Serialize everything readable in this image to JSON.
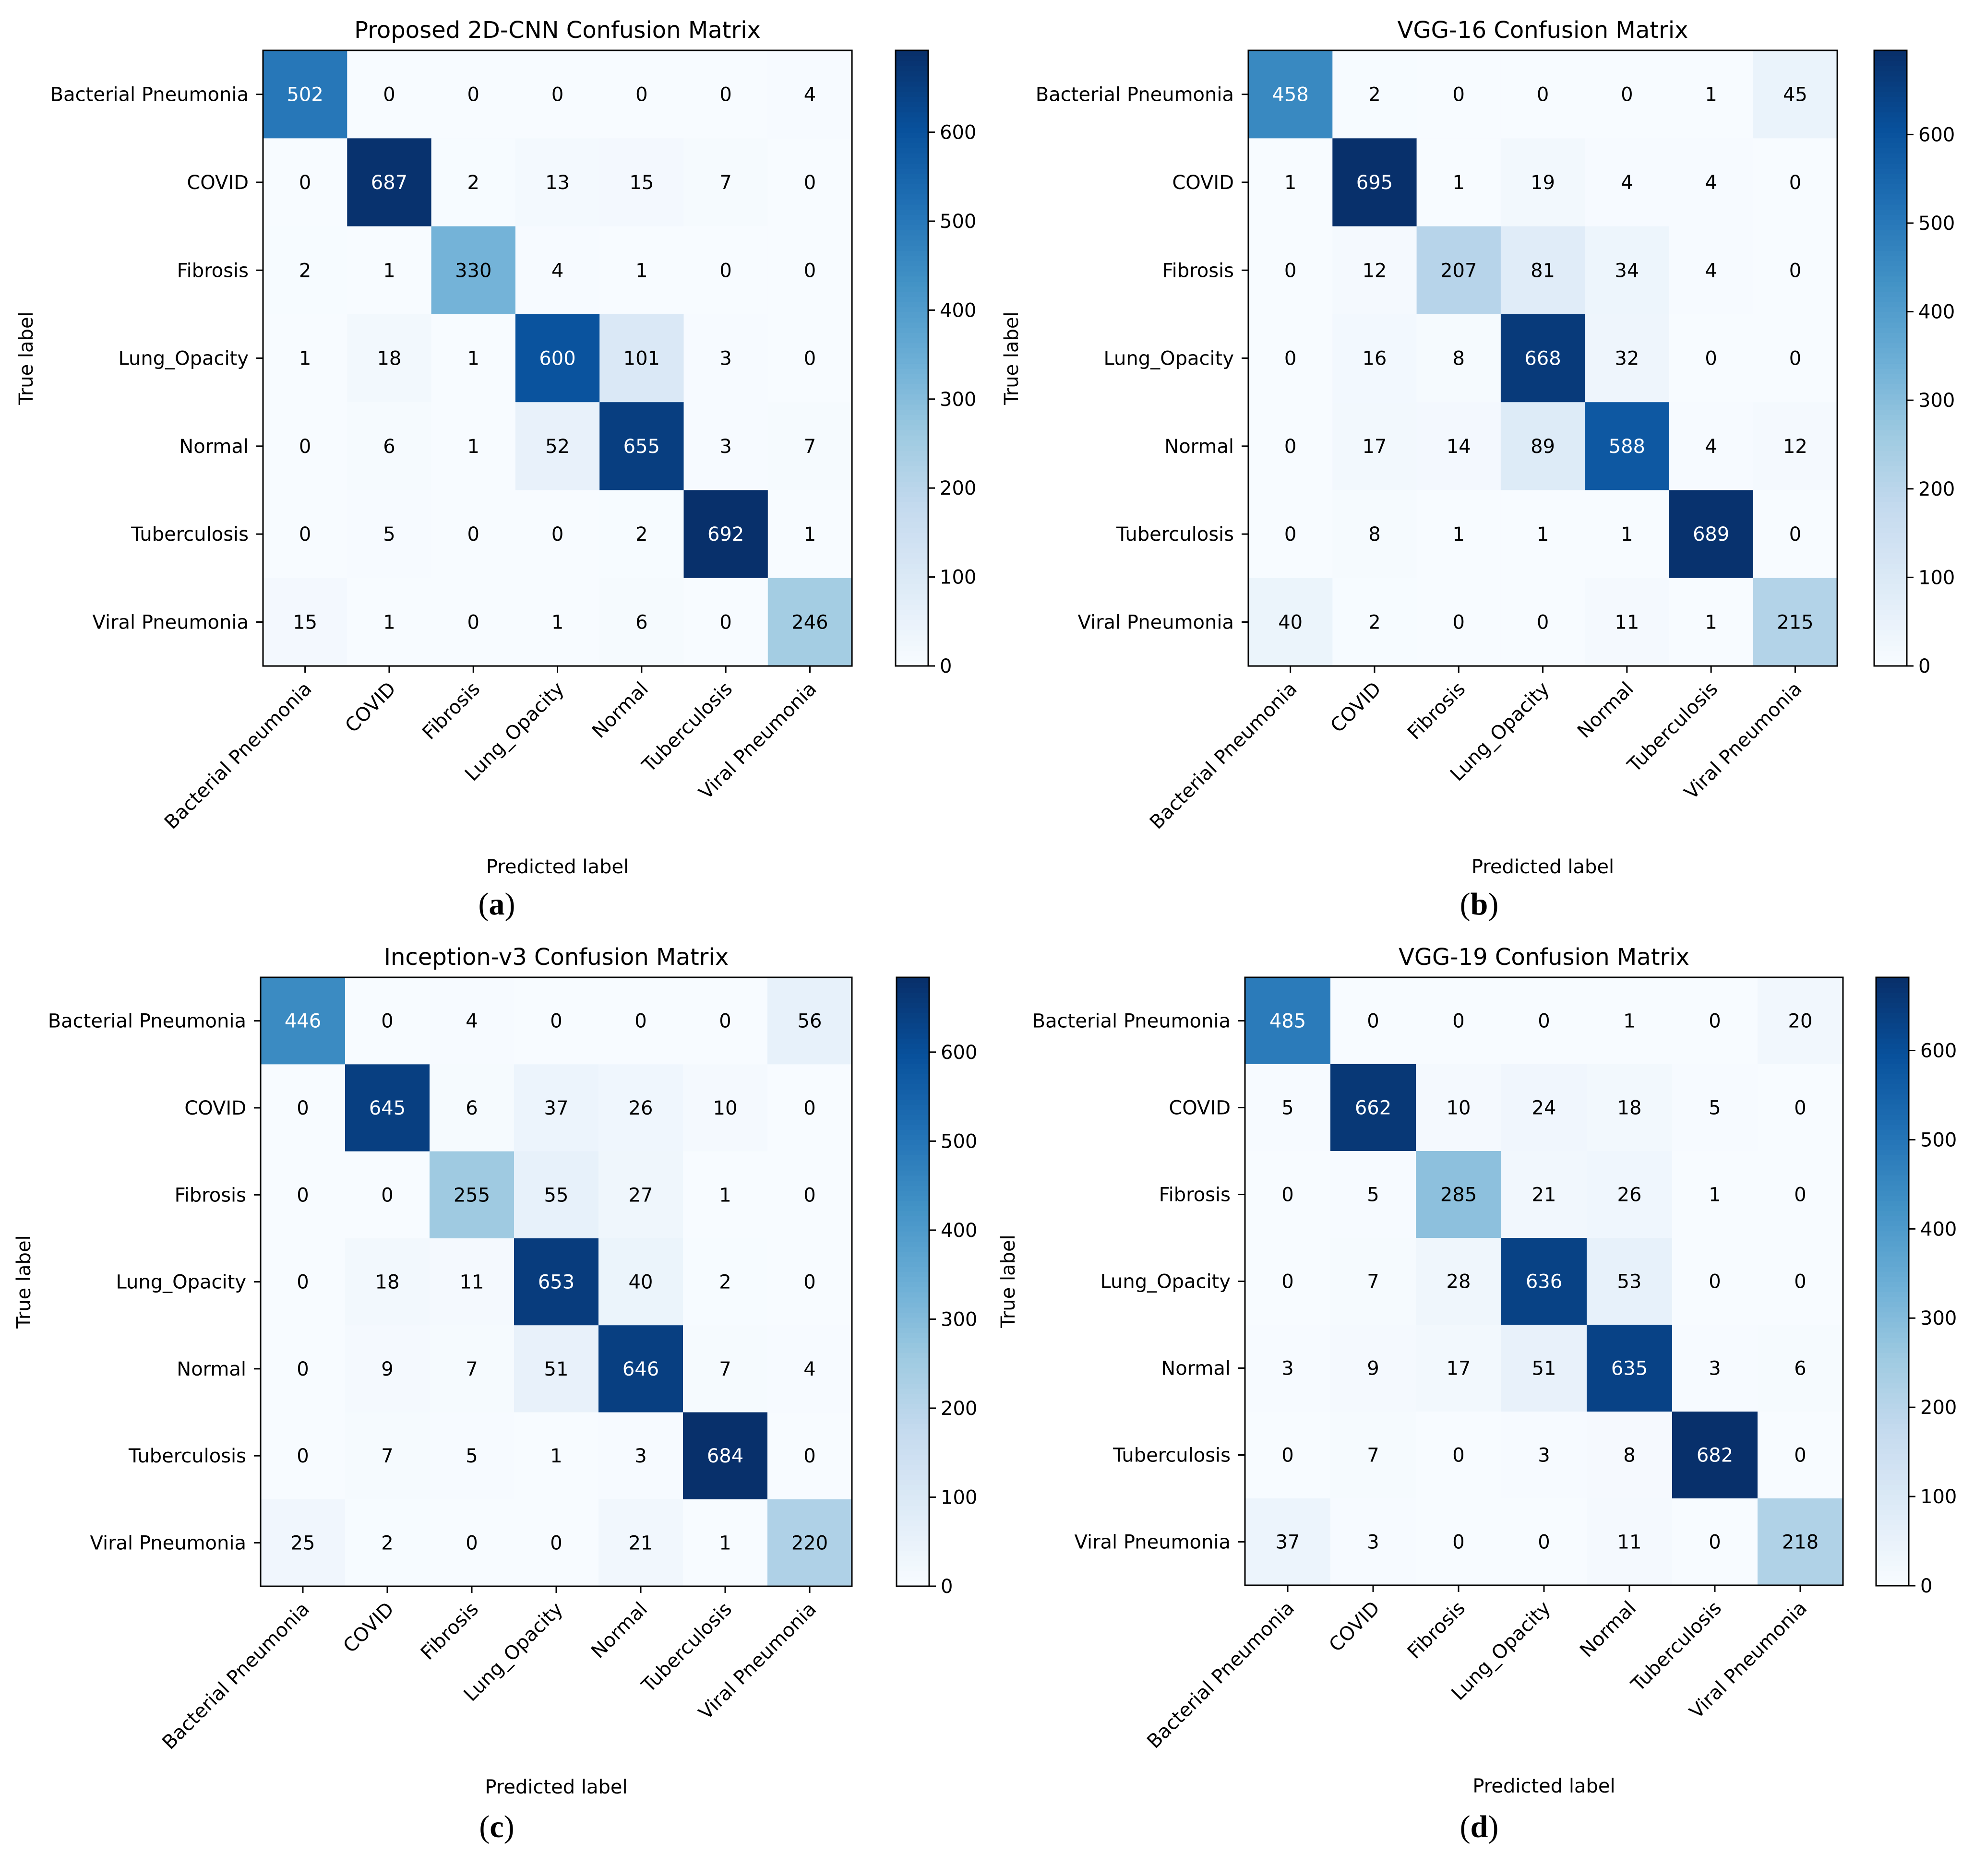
{
  "figure_colors": {
    "colormap": [
      "#f7fbff",
      "#deebf7",
      "#c6dbef",
      "#9ecae1",
      "#6baed6",
      "#4292c6",
      "#2171b5",
      "#08519c",
      "#08306b"
    ],
    "text_dark": "#000000",
    "text_light": "#ffffff",
    "axis": "#000000"
  },
  "chart_data": [
    {
      "type": "heatmap",
      "panel_label": "(a)",
      "title": "Proposed 2D-CNN Confusion Matrix",
      "xlabel": "Predicted label",
      "ylabel": "True label",
      "categories": [
        "Bacterial Pneumonia",
        "COVID",
        "Fibrosis",
        "Lung_Opacity",
        "Normal",
        "Tuberculosis",
        "Viral Pneumonia"
      ],
      "matrix": [
        [
          502,
          0,
          0,
          0,
          0,
          0,
          4
        ],
        [
          0,
          687,
          2,
          13,
          15,
          7,
          0
        ],
        [
          2,
          1,
          330,
          4,
          1,
          0,
          0
        ],
        [
          1,
          18,
          1,
          600,
          101,
          3,
          0
        ],
        [
          0,
          6,
          1,
          52,
          655,
          3,
          7
        ],
        [
          0,
          5,
          0,
          0,
          2,
          692,
          1
        ],
        [
          15,
          1,
          0,
          1,
          6,
          0,
          246
        ]
      ],
      "colorbar_range": [
        0,
        692
      ],
      "colorbar_ticks": [
        "0",
        "100",
        "200",
        "300",
        "400",
        "500",
        "600"
      ]
    },
    {
      "type": "heatmap",
      "panel_label": "(b)",
      "title": "VGG-16 Confusion Matrix",
      "xlabel": "Predicted label",
      "ylabel": "True label",
      "categories": [
        "Bacterial Pneumonia",
        "COVID",
        "Fibrosis",
        "Lung_Opacity",
        "Normal",
        "Tuberculosis",
        "Viral Pneumonia"
      ],
      "matrix": [
        [
          458,
          2,
          0,
          0,
          0,
          1,
          45
        ],
        [
          1,
          695,
          1,
          19,
          4,
          4,
          0
        ],
        [
          0,
          12,
          207,
          81,
          34,
          4,
          0
        ],
        [
          0,
          16,
          8,
          668,
          32,
          0,
          0
        ],
        [
          0,
          17,
          14,
          89,
          588,
          4,
          12
        ],
        [
          0,
          8,
          1,
          1,
          1,
          689,
          0
        ],
        [
          40,
          2,
          0,
          0,
          11,
          1,
          215
        ]
      ],
      "colorbar_range": [
        0,
        695
      ],
      "colorbar_ticks": [
        "0",
        "100",
        "200",
        "300",
        "400",
        "500",
        "600"
      ]
    },
    {
      "type": "heatmap",
      "panel_label": "(c)",
      "title": "Inception-v3 Confusion Matrix",
      "xlabel": "Predicted label",
      "ylabel": "True label",
      "categories": [
        "Bacterial Pneumonia",
        "COVID",
        "Fibrosis",
        "Lung_Opacity",
        "Normal",
        "Tuberculosis",
        "Viral Pneumonia"
      ],
      "matrix": [
        [
          446,
          0,
          4,
          0,
          0,
          0,
          56
        ],
        [
          0,
          645,
          6,
          37,
          26,
          10,
          0
        ],
        [
          0,
          0,
          255,
          55,
          27,
          1,
          0
        ],
        [
          0,
          18,
          11,
          653,
          40,
          2,
          0
        ],
        [
          0,
          9,
          7,
          51,
          646,
          7,
          4
        ],
        [
          0,
          7,
          5,
          1,
          3,
          684,
          0
        ],
        [
          25,
          2,
          0,
          0,
          21,
          1,
          220
        ]
      ],
      "colorbar_range": [
        0,
        684
      ],
      "colorbar_ticks": [
        "0",
        "100",
        "200",
        "300",
        "400",
        "500",
        "600"
      ]
    },
    {
      "type": "heatmap",
      "panel_label": "(d)",
      "title": "VGG-19 Confusion Matrix",
      "xlabel": "Predicted label",
      "ylabel": "True label",
      "categories": [
        "Bacterial Pneumonia",
        "COVID",
        "Fibrosis",
        "Lung_Opacity",
        "Normal",
        "Tuberculosis",
        "Viral Pneumonia"
      ],
      "matrix": [
        [
          485,
          0,
          0,
          0,
          1,
          0,
          20
        ],
        [
          5,
          662,
          10,
          24,
          18,
          5,
          0
        ],
        [
          0,
          5,
          285,
          21,
          26,
          1,
          0
        ],
        [
          0,
          7,
          28,
          636,
          53,
          0,
          0
        ],
        [
          3,
          9,
          17,
          51,
          635,
          3,
          6
        ],
        [
          0,
          7,
          0,
          3,
          8,
          682,
          0
        ],
        [
          37,
          3,
          0,
          0,
          11,
          0,
          218
        ]
      ],
      "colorbar_range": [
        0,
        682
      ],
      "colorbar_ticks": [
        "0",
        "100",
        "200",
        "300",
        "400",
        "500",
        "600"
      ]
    }
  ]
}
